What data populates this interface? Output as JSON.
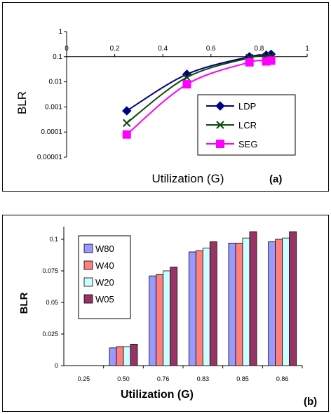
{
  "chart_data": [
    {
      "type": "line",
      "panel_label": "(a)",
      "title": "",
      "xlabel": "Utilization (G)",
      "ylabel": "BLR",
      "xlim": [
        0,
        1
      ],
      "ylim": [
        1e-05,
        1
      ],
      "y_scale": "log",
      "x_ticks": [
        "0",
        "0.2",
        "0.4",
        "0.6",
        "0.8",
        "1"
      ],
      "y_ticks": [
        "1",
        "0.1",
        "0.01",
        "0.001",
        "0.0001",
        "0.00001"
      ],
      "legend_position": "right",
      "series": [
        {
          "name": "LDP",
          "color": "#000080",
          "marker": "diamond",
          "x": [
            0.25,
            0.5,
            0.76,
            0.83,
            0.85
          ],
          "y": [
            0.0007,
            0.02,
            0.1,
            0.115,
            0.125
          ]
        },
        {
          "name": "LCR",
          "color": "#0a4a0a",
          "marker": "x",
          "x": [
            0.25,
            0.5,
            0.76,
            0.83,
            0.85
          ],
          "y": [
            0.00023,
            0.015,
            0.09,
            0.1,
            0.105
          ]
        },
        {
          "name": "SEG",
          "color": "#ff00ff",
          "marker": "square",
          "x": [
            0.25,
            0.5,
            0.76,
            0.83,
            0.85
          ],
          "y": [
            8e-05,
            0.008,
            0.06,
            0.065,
            0.07
          ]
        }
      ]
    },
    {
      "type": "bar",
      "panel_label": "(b)",
      "title": "",
      "xlabel": "Utilization (G)",
      "ylabel": "BLR",
      "ylim": [
        0,
        0.11
      ],
      "y_ticks": [
        "0",
        "0.025",
        "0.05",
        "0.075",
        "0.1"
      ],
      "y_tick_values": [
        0,
        0.025,
        0.05,
        0.075,
        0.1
      ],
      "categories": [
        "0.25",
        "0.50",
        "0.76",
        "0.83",
        "0.85",
        "0.86"
      ],
      "legend_position": "left",
      "series": [
        {
          "name": "W80",
          "color": "#9999ff",
          "values": [
            0,
            0.014,
            0.071,
            0.09,
            0.097,
            0.098
          ]
        },
        {
          "name": "W40",
          "color": "#ff7f7f",
          "values": [
            0,
            0.015,
            0.072,
            0.091,
            0.097,
            0.1
          ]
        },
        {
          "name": "W20",
          "color": "#ccffff",
          "values": [
            0,
            0.015,
            0.075,
            0.093,
            0.101,
            0.101
          ]
        },
        {
          "name": "W05",
          "color": "#993366",
          "values": [
            0,
            0.017,
            0.078,
            0.098,
            0.106,
            0.106
          ]
        }
      ]
    }
  ]
}
